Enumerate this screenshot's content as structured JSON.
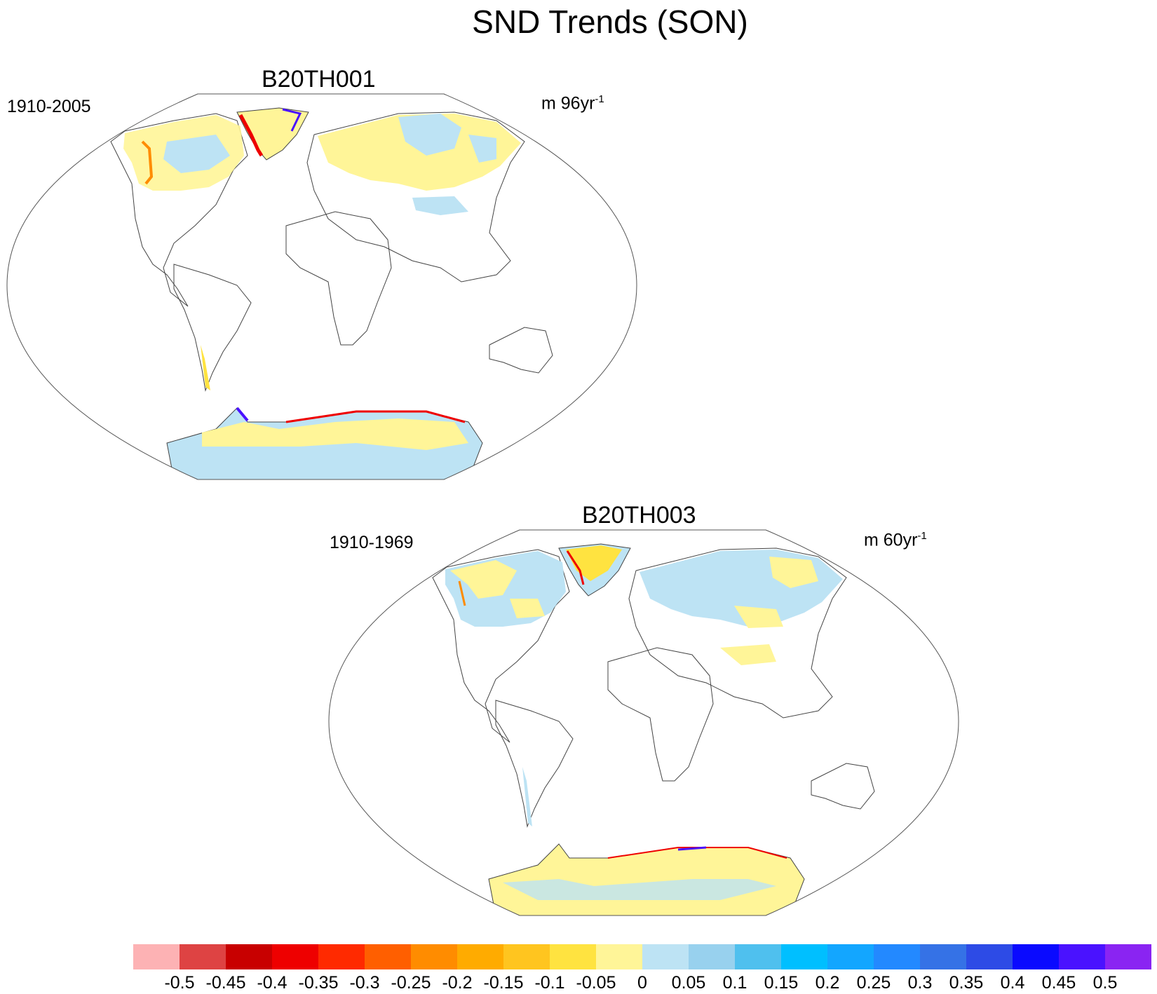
{
  "title": "SND Trends (SON)",
  "panels": [
    {
      "name": "B20TH001",
      "period": "1910-2005",
      "units_base": "m 96yr",
      "units_sup": "-1"
    },
    {
      "name": "B20TH003",
      "period": "1910-1969",
      "units_base": "m 60yr",
      "units_sup": "-1"
    }
  ],
  "colorbar": {
    "labels": [
      "-0.5",
      "-0.45",
      "-0.4",
      "-0.35",
      "-0.3",
      "-0.25",
      "-0.2",
      "-0.15",
      "-0.1",
      "-0.05",
      "0",
      "0.05",
      "0.1",
      "0.15",
      "0.2",
      "0.25",
      "0.3",
      "0.35",
      "0.4",
      "0.45",
      "0.5"
    ],
    "colors": [
      "#FDB2B4",
      "#DE4343",
      "#C80000",
      "#EE0000",
      "#FF2A00",
      "#FF5F00",
      "#FF8C00",
      "#FFAB00",
      "#FFC51F",
      "#FFE340",
      "#FFF598",
      "#BDE3F4",
      "#98D1EE",
      "#4FC0EE",
      "#00BFFF",
      "#13A6FF",
      "#2389FF",
      "#3572E6",
      "#2D4BE6",
      "#0A0AFF",
      "#4A12FF",
      "#8A24F2"
    ]
  },
  "legend_colors": {
    "neg_small": "#FFF598",
    "neg_mid": "#FFE340",
    "pos_small": "#BDE3F4",
    "pos_mid": "#98D1EE",
    "strong_neg": "#EE0000",
    "strong_pos": "#4A12FF",
    "coast": "#444444",
    "frame": "#555555"
  }
}
